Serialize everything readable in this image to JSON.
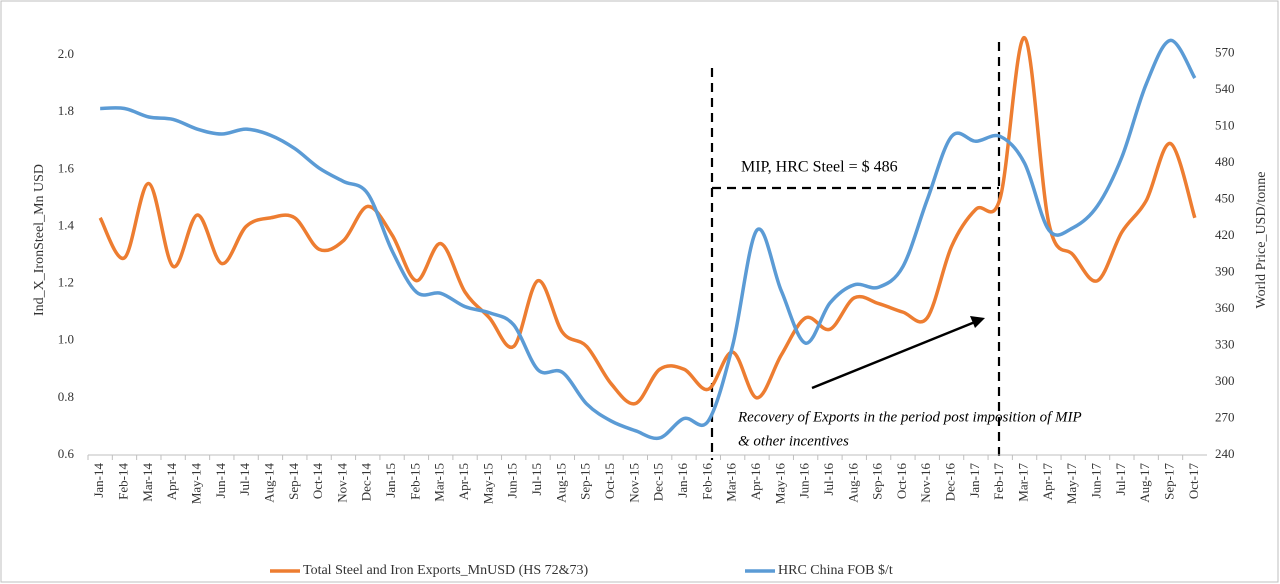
{
  "chart_data": {
    "type": "line",
    "y_label": "Ind_X_IronSteel_Mn USD",
    "y2_label": "World Price_USD/tonne",
    "categories": [
      "Jan-14",
      "Feb-14",
      "Mar-14",
      "Apr-14",
      "May-14",
      "Jun-14",
      "Jul-14",
      "Aug-14",
      "Sep-14",
      "Oct-14",
      "Nov-14",
      "Dec-14",
      "Jan-15",
      "Feb-15",
      "Mar-15",
      "Apr-15",
      "May-15",
      "Jun-15",
      "Jul-15",
      "Aug-15",
      "Sep-15",
      "Oct-15",
      "Nov-15",
      "Dec-15",
      "Jan-16",
      "Feb-16",
      "Mar-16",
      "Apr-16",
      "May-16",
      "Jun-16",
      "Jul-16",
      "Aug-16",
      "Sep-16",
      "Oct-16",
      "Nov-16",
      "Dec-16",
      "Jan-17",
      "Feb-17",
      "Mar-17",
      "Apr-17",
      "May-17",
      "Jun-17",
      "Jul-17",
      "Aug-17",
      "Sep-17",
      "Oct-17"
    ],
    "series": [
      {
        "name": "Total Steel and Iron Exports_MnUSD (HS 72&73)",
        "color": "#ed7d31",
        "values": [
          1.43,
          1.29,
          1.55,
          1.26,
          1.44,
          1.27,
          1.4,
          1.43,
          1.43,
          1.32,
          1.35,
          1.47,
          1.37,
          1.21,
          1.34,
          1.17,
          1.08,
          0.98,
          1.21,
          1.03,
          0.98,
          0.85,
          0.78,
          0.9,
          0.9,
          0.83,
          0.96,
          0.8,
          0.95,
          1.08,
          1.04,
          1.15,
          1.13,
          1.1,
          1.08,
          1.33,
          1.46,
          1.5,
          2.06,
          1.41,
          1.3,
          1.21,
          1.38,
          1.49,
          1.69,
          1.43
        ]
      },
      {
        "name": "HRC China FOB $/t",
        "color": "#5b9bd5",
        "axis": "y2",
        "values": [
          525,
          525,
          518,
          516,
          508,
          504,
          508,
          503,
          492,
          476,
          465,
          455,
          408,
          374,
          373,
          362,
          357,
          347,
          310,
          308,
          282,
          268,
          260,
          254,
          270,
          268,
          330,
          425,
          375,
          332,
          365,
          380,
          378,
          395,
          450,
          502,
          498,
          502,
          480,
          425,
          427,
          445,
          485,
          545,
          581,
          550
        ]
      }
    ],
    "ylim": [
      0.6,
      2.1
    ],
    "yticks": [
      {
        "value": 0.6,
        "label": "0.6"
      },
      {
        "value": 0.8,
        "label": "0.8"
      },
      {
        "value": 1.0,
        "label": "1.0"
      },
      {
        "value": 1.2,
        "label": "1.2"
      },
      {
        "value": 1.4,
        "label": "1.4"
      },
      {
        "value": 1.6,
        "label": "1.6"
      },
      {
        "value": 1.8,
        "label": "1.8"
      },
      {
        "value": 2.0,
        "label": "2.0"
      }
    ],
    "y2lim": [
      240,
      592.5
    ],
    "y2ticks": [
      240,
      270,
      300,
      330,
      360,
      390,
      420,
      450,
      480,
      510,
      540,
      570
    ],
    "annotations": {
      "mip": "MIP, HRC Steel = $ 486",
      "recovery": [
        "Recovery of Exports in the period post imposition of MIP",
        "& other incentives"
      ]
    }
  }
}
